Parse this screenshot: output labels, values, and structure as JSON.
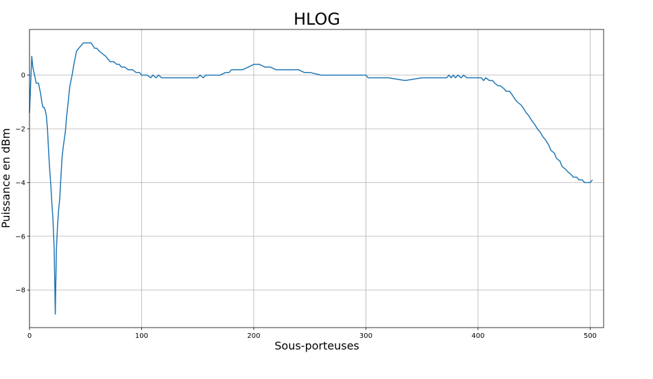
{
  "chart_data": {
    "type": "line",
    "title": "HLOG",
    "xlabel": "Sous-porteuses",
    "ylabel": "Puissance en dBm",
    "xlim": [
      0,
      512
    ],
    "ylim": [
      -9.4,
      1.7
    ],
    "xticks": [
      0,
      100,
      200,
      300,
      400,
      500
    ],
    "yticks": [
      0,
      -2,
      -4,
      -6,
      -8
    ],
    "ytick_labels": [
      "0",
      "−2",
      "−4",
      "−6",
      "−8"
    ],
    "grid": true,
    "line_color": "#1f77b4",
    "series": [
      {
        "x": [
          0,
          2,
          3,
          5,
          6,
          8,
          10,
          11,
          12,
          13,
          14,
          15,
          16,
          17,
          18,
          19,
          20,
          21,
          22,
          23,
          24,
          25,
          26,
          27,
          28,
          29,
          30,
          31,
          32,
          33,
          34,
          35,
          36,
          37,
          38,
          40,
          42,
          44,
          46,
          48,
          50,
          52,
          55,
          58,
          60,
          62,
          65,
          68,
          70,
          72,
          75,
          78,
          80,
          82,
          85,
          88,
          90,
          92,
          95,
          98,
          100,
          103,
          105,
          108,
          110,
          113,
          115,
          118,
          120,
          125,
          130,
          135,
          140,
          145,
          150,
          152,
          155,
          157,
          160,
          165,
          170,
          175,
          178,
          180,
          183,
          185,
          190,
          195,
          200,
          205,
          210,
          215,
          220,
          230,
          240,
          245,
          250,
          260,
          270,
          280,
          290,
          300,
          302,
          305,
          320,
          335,
          350,
          360,
          372,
          374,
          376,
          378,
          380,
          382,
          385,
          387,
          390,
          400,
          403,
          405,
          407,
          410,
          413,
          415,
          418,
          420,
          423,
          425,
          428,
          430,
          433,
          435,
          438,
          440,
          443,
          445,
          448,
          450,
          453,
          455,
          458,
          460,
          463,
          465,
          468,
          470,
          473,
          475,
          478,
          480,
          483,
          485,
          488,
          490,
          493,
          495,
          498,
          500,
          502
        ],
        "y": [
          -1.4,
          0.7,
          0.3,
          -0.1,
          -0.3,
          -0.3,
          -0.7,
          -1.0,
          -1.2,
          -1.2,
          -1.3,
          -1.5,
          -2.0,
          -2.8,
          -3.5,
          -4.1,
          -4.8,
          -5.4,
          -6.5,
          -8.9,
          -6.5,
          -5.6,
          -5.0,
          -4.6,
          -3.8,
          -3.1,
          -2.7,
          -2.4,
          -2.1,
          -1.6,
          -1.2,
          -0.8,
          -0.4,
          -0.2,
          0.0,
          0.5,
          0.9,
          1.0,
          1.1,
          1.2,
          1.2,
          1.2,
          1.2,
          1.0,
          1.0,
          0.9,
          0.8,
          0.7,
          0.6,
          0.5,
          0.5,
          0.4,
          0.4,
          0.3,
          0.3,
          0.2,
          0.2,
          0.2,
          0.1,
          0.1,
          0.0,
          0.0,
          0.0,
          -0.1,
          0.0,
          -0.1,
          0.0,
          -0.1,
          -0.1,
          -0.1,
          -0.1,
          -0.1,
          -0.1,
          -0.1,
          -0.1,
          0.0,
          -0.1,
          0.0,
          0.0,
          0.0,
          0.0,
          0.1,
          0.1,
          0.2,
          0.2,
          0.2,
          0.2,
          0.3,
          0.4,
          0.4,
          0.3,
          0.3,
          0.2,
          0.2,
          0.2,
          0.1,
          0.1,
          0.0,
          0.0,
          0.0,
          0.0,
          0.0,
          -0.1,
          -0.1,
          -0.1,
          -0.2,
          -0.1,
          -0.1,
          -0.1,
          0.0,
          -0.1,
          0.0,
          -0.1,
          0.0,
          -0.1,
          0.0,
          -0.1,
          -0.1,
          -0.1,
          -0.2,
          -0.1,
          -0.2,
          -0.2,
          -0.3,
          -0.4,
          -0.4,
          -0.5,
          -0.6,
          -0.6,
          -0.7,
          -0.9,
          -1.0,
          -1.1,
          -1.2,
          -1.4,
          -1.5,
          -1.7,
          -1.8,
          -2.0,
          -2.1,
          -2.3,
          -2.4,
          -2.6,
          -2.8,
          -2.9,
          -3.1,
          -3.2,
          -3.4,
          -3.5,
          -3.6,
          -3.7,
          -3.8,
          -3.8,
          -3.9,
          -3.9,
          -4.0,
          -4.0,
          -4.0,
          -3.9
        ]
      }
    ]
  }
}
